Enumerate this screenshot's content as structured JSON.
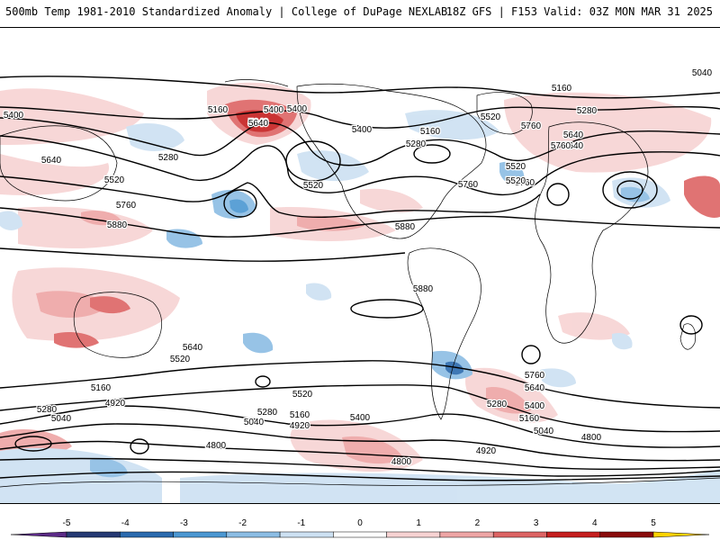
{
  "header": {
    "title_left": "500mb Temp 1981-2010 Standardized Anomaly | College of DuPage NEXLAB",
    "title_right": "18Z GFS | F153 Valid: 03Z MON MAR 31 2025"
  },
  "colors": {
    "anomaly_scale": [
      "#5b2a86",
      "#263a73",
      "#2b6aae",
      "#4b97d2",
      "#8cbde4",
      "#cde1f2",
      "#ffffff",
      "#f7d3d3",
      "#eea5a5",
      "#dd6464",
      "#c51f1f",
      "#8a0c0c",
      "#ffd200"
    ],
    "contour": "#000000",
    "land": "#000000"
  },
  "contours": {
    "labels": [
      "5040",
      "5160",
      "5280",
      "5400",
      "5520",
      "5640",
      "5760",
      "5880",
      "4920",
      "4800"
    ],
    "placed": [
      {
        "text": "5040"
      },
      {
        "text": "5160"
      },
      {
        "text": "5280"
      },
      {
        "text": "5400"
      },
      {
        "text": "5400"
      },
      {
        "text": "5520"
      },
      {
        "text": "5640"
      },
      {
        "text": "5760"
      },
      {
        "text": "5160"
      },
      {
        "text": "5400"
      },
      {
        "text": "5640"
      },
      {
        "text": "5400"
      },
      {
        "text": "5640"
      },
      {
        "text": "5160"
      },
      {
        "text": "5280"
      },
      {
        "text": "5280"
      },
      {
        "text": "5520"
      },
      {
        "text": "5640"
      },
      {
        "text": "5520"
      },
      {
        "text": "5760"
      },
      {
        "text": "5760"
      },
      {
        "text": "5520"
      },
      {
        "text": "5880"
      },
      {
        "text": "5880"
      },
      {
        "text": "5880"
      },
      {
        "text": "5760"
      },
      {
        "text": "5640"
      },
      {
        "text": "5760"
      },
      {
        "text": "5640"
      },
      {
        "text": "5520"
      },
      {
        "text": "5520"
      },
      {
        "text": "5160"
      },
      {
        "text": "4920"
      },
      {
        "text": "5280"
      },
      {
        "text": "5040"
      },
      {
        "text": "5280"
      },
      {
        "text": "5040"
      },
      {
        "text": "5160"
      },
      {
        "text": "4920"
      },
      {
        "text": "5400"
      },
      {
        "text": "5520"
      },
      {
        "text": "5280"
      },
      {
        "text": "5760"
      },
      {
        "text": "5640"
      },
      {
        "text": "5400"
      },
      {
        "text": "5160"
      },
      {
        "text": "5040"
      },
      {
        "text": "4800"
      },
      {
        "text": "4920"
      },
      {
        "text": "4800"
      },
      {
        "text": "4800"
      }
    ]
  },
  "colorbar": {
    "ticks": [
      "-5",
      "-4",
      "-3",
      "-2",
      "-1",
      "0",
      "1",
      "2",
      "3",
      "4",
      "5"
    ]
  }
}
